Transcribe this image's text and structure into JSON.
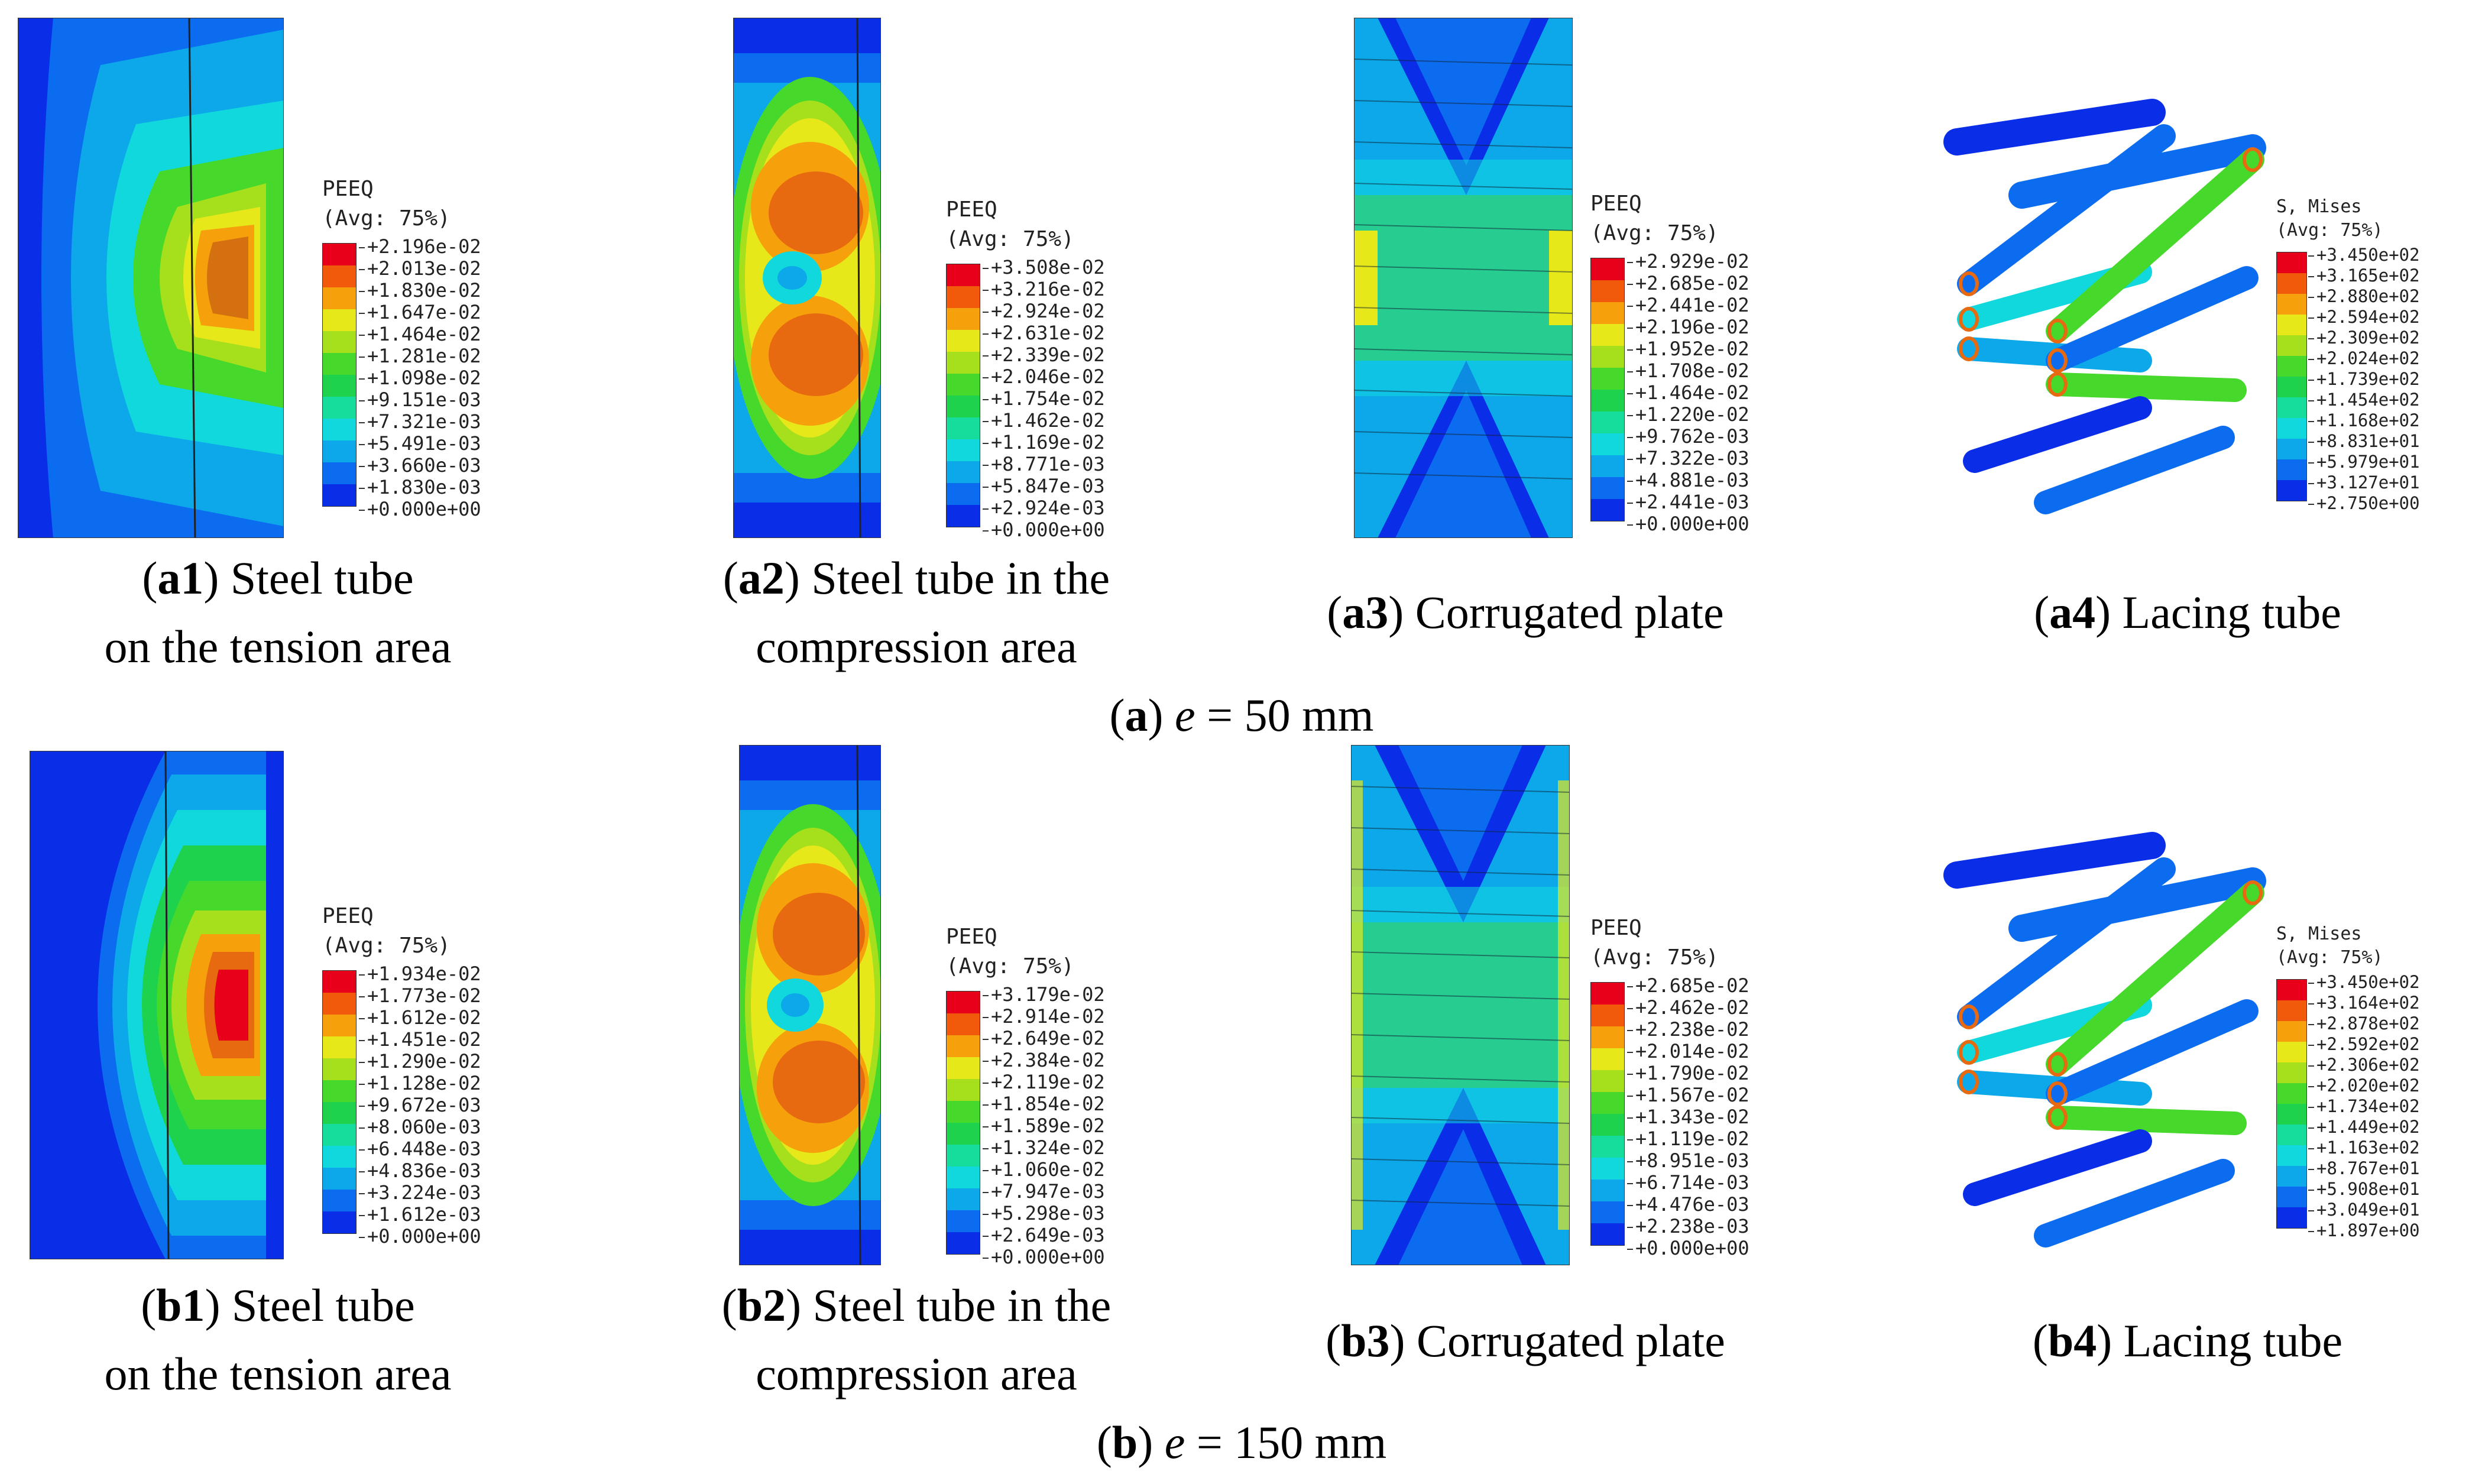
{
  "colors": {
    "red": "#e8001a",
    "orange_red": "#f05a0a",
    "orange": "#f6a00c",
    "yellow": "#e6e81a",
    "yellow_green": "#a6e01c",
    "green": "#46d82a",
    "green2": "#1fd24e",
    "teal": "#16dc9c",
    "cyan": "#10d8dc",
    "light_blue": "#0ca8ea",
    "blue": "#0c6cf0",
    "deep_blue": "#0a2ee8"
  },
  "legend_colors": [
    "#e8001a",
    "#f05a0a",
    "#f6a00c",
    "#e6e81a",
    "#a6e01c",
    "#46d82a",
    "#1fd24e",
    "#16dc9c",
    "#10d8dc",
    "#0ca8ea",
    "#0c6cf0",
    "#0a2ee8"
  ],
  "groups": [
    {
      "label": "a",
      "caption_suffix": " = 50 mm",
      "variable": "e",
      "panels": [
        {
          "id": "a1",
          "caption_line1": " Steel tube",
          "caption_line2": "on the tension area",
          "legend": {
            "title": "PEEQ",
            "subtitle": "(Avg: 75%)",
            "values": [
              "+2.196e-02",
              "+2.013e-02",
              "+1.830e-02",
              "+1.647e-02",
              "+1.464e-02",
              "+1.281e-02",
              "+1.098e-02",
              "+9.151e-03",
              "+7.321e-03",
              "+5.491e-03",
              "+3.660e-03",
              "+1.830e-03",
              "+0.000e+00"
            ]
          }
        },
        {
          "id": "a2",
          "caption_line1": " Steel tube in the",
          "caption_line2": "compression area",
          "legend": {
            "title": "PEEQ",
            "subtitle": "(Avg: 75%)",
            "values": [
              "+3.508e-02",
              "+3.216e-02",
              "+2.924e-02",
              "+2.631e-02",
              "+2.339e-02",
              "+2.046e-02",
              "+1.754e-02",
              "+1.462e-02",
              "+1.169e-02",
              "+8.771e-03",
              "+5.847e-03",
              "+2.924e-03",
              "+0.000e+00"
            ]
          }
        },
        {
          "id": "a3",
          "caption_line1": " Corrugated plate",
          "caption_line2": "",
          "legend": {
            "title": "PEEQ",
            "subtitle": "(Avg: 75%)",
            "values": [
              "+2.929e-02",
              "+2.685e-02",
              "+2.441e-02",
              "+2.196e-02",
              "+1.952e-02",
              "+1.708e-02",
              "+1.464e-02",
              "+1.220e-02",
              "+9.762e-03",
              "+7.322e-03",
              "+4.881e-03",
              "+2.441e-03",
              "+0.000e+00"
            ]
          }
        },
        {
          "id": "a4",
          "caption_line1": " Lacing tube",
          "caption_line2": "",
          "legend": {
            "title": "S, Mises",
            "subtitle": "(Avg: 75%)",
            "values": [
              "+3.450e+02",
              "+3.165e+02",
              "+2.880e+02",
              "+2.594e+02",
              "+2.309e+02",
              "+2.024e+02",
              "+1.739e+02",
              "+1.454e+02",
              "+1.168e+02",
              "+8.831e+01",
              "+5.979e+01",
              "+3.127e+01",
              "+2.750e+00"
            ]
          }
        }
      ]
    },
    {
      "label": "b",
      "caption_suffix": " = 150 mm",
      "variable": "e",
      "panels": [
        {
          "id": "b1",
          "caption_line1": " Steel tube",
          "caption_line2": "on the tension area",
          "legend": {
            "title": "PEEQ",
            "subtitle": "(Avg: 75%)",
            "values": [
              "+1.934e-02",
              "+1.773e-02",
              "+1.612e-02",
              "+1.451e-02",
              "+1.290e-02",
              "+1.128e-02",
              "+9.672e-03",
              "+8.060e-03",
              "+6.448e-03",
              "+4.836e-03",
              "+3.224e-03",
              "+1.612e-03",
              "+0.000e+00"
            ]
          }
        },
        {
          "id": "b2",
          "caption_line1": " Steel tube in the",
          "caption_line2": "compression area",
          "legend": {
            "title": "PEEQ",
            "subtitle": "(Avg: 75%)",
            "values": [
              "+3.179e-02",
              "+2.914e-02",
              "+2.649e-02",
              "+2.384e-02",
              "+2.119e-02",
              "+1.854e-02",
              "+1.589e-02",
              "+1.324e-02",
              "+1.060e-02",
              "+7.947e-03",
              "+5.298e-03",
              "+2.649e-03",
              "+0.000e+00"
            ]
          }
        },
        {
          "id": "b3",
          "caption_line1": " Corrugated plate",
          "caption_line2": "",
          "legend": {
            "title": "PEEQ",
            "subtitle": "(Avg: 75%)",
            "values": [
              "+2.685e-02",
              "+2.462e-02",
              "+2.238e-02",
              "+2.014e-02",
              "+1.790e-02",
              "+1.567e-02",
              "+1.343e-02",
              "+1.119e-02",
              "+8.951e-03",
              "+6.714e-03",
              "+4.476e-03",
              "+2.238e-03",
              "+0.000e+00"
            ]
          }
        },
        {
          "id": "b4",
          "caption_line1": " Lacing tube",
          "caption_line2": "",
          "legend": {
            "title": "S, Mises",
            "subtitle": "(Avg: 75%)",
            "values": [
              "+3.450e+02",
              "+3.164e+02",
              "+2.878e+02",
              "+2.592e+02",
              "+2.306e+02",
              "+2.020e+02",
              "+1.734e+02",
              "+1.449e+02",
              "+1.163e+02",
              "+8.767e+01",
              "+5.908e+01",
              "+3.049e+01",
              "+1.897e+00"
            ]
          }
        }
      ]
    }
  ]
}
